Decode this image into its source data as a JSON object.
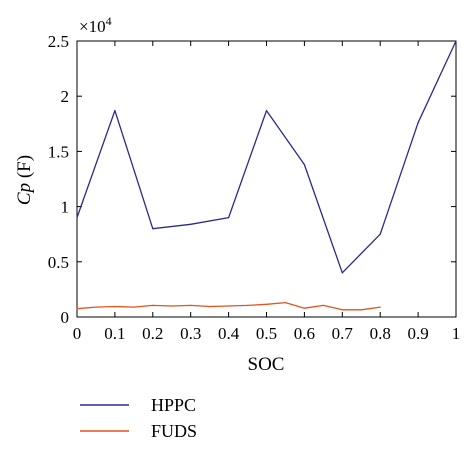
{
  "chart_data": {
    "type": "line",
    "xlabel": "SOC",
    "ylabel_main": "Cp",
    "ylabel_unit": "(F)",
    "y_exponent_base": "×10",
    "y_exponent_power": "4",
    "xlim": [
      0,
      1
    ],
    "ylim": [
      0,
      25000
    ],
    "x_ticks": [
      0,
      0.1,
      0.2,
      0.3,
      0.4,
      0.5,
      0.6,
      0.7,
      0.8,
      0.9,
      1
    ],
    "x_tick_labels": [
      "0",
      "0.1",
      "0.2",
      "0.3",
      "0.4",
      "0.5",
      "0.6",
      "0.7",
      "0.8",
      "0.9",
      "1"
    ],
    "y_ticks": [
      0,
      5000,
      10000,
      15000,
      20000,
      25000
    ],
    "y_tick_labels": [
      "0",
      "0.5",
      "1",
      "1.5",
      "2",
      "2.5"
    ],
    "grid": false,
    "legend_position": "below",
    "series": [
      {
        "name": "HPPC",
        "color": "#2b2b8c",
        "x": [
          0,
          0.1,
          0.2,
          0.3,
          0.4,
          0.5,
          0.6,
          0.7,
          0.8,
          0.9,
          1
        ],
        "y": [
          9000,
          18700,
          8000,
          8400,
          9000,
          18700,
          13800,
          4000,
          7500,
          17600,
          25000
        ]
      },
      {
        "name": "FUDS",
        "color": "#e0541e",
        "x": [
          0,
          0.05,
          0.1,
          0.15,
          0.2,
          0.25,
          0.3,
          0.35,
          0.4,
          0.45,
          0.5,
          0.55,
          0.6,
          0.65,
          0.7,
          0.75,
          0.8
        ],
        "y": [
          750,
          900,
          950,
          900,
          1050,
          1000,
          1050,
          950,
          1000,
          1050,
          1150,
          1300,
          800,
          1050,
          650,
          650,
          900
        ]
      }
    ]
  }
}
